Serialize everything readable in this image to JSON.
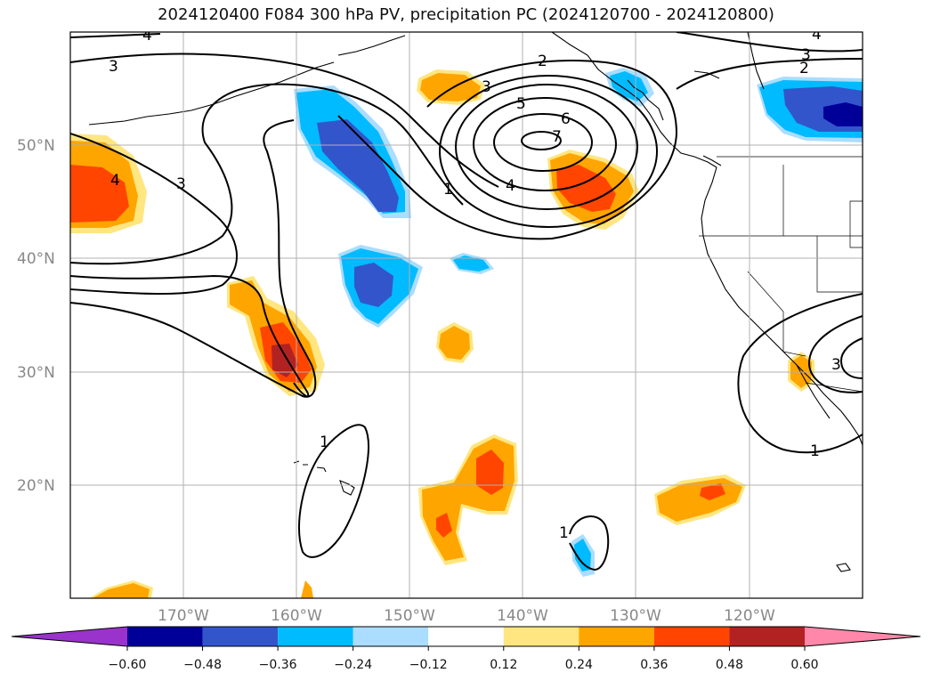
{
  "title": "2024120400 F084 300 hPa PV, precipitation PC (2024120700 - 2024120800)",
  "map": {
    "lon_min": -180,
    "lon_max": -110,
    "lat_min": 10,
    "lat_max": 60,
    "lat_ticks": [
      {
        "value": 20,
        "label": "20°N"
      },
      {
        "value": 30,
        "label": "30°N"
      },
      {
        "value": 40,
        "label": "40°N"
      },
      {
        "value": 50,
        "label": "50°N"
      }
    ],
    "lon_ticks": [
      {
        "value": -170,
        "label": "170°W"
      },
      {
        "value": -160,
        "label": "160°W"
      },
      {
        "value": -150,
        "label": "150°W"
      },
      {
        "value": -140,
        "label": "140°W"
      },
      {
        "value": -130,
        "label": "130°W"
      },
      {
        "value": -120,
        "label": "120°W"
      }
    ],
    "pv_contour_labels": [
      "1",
      "2",
      "3",
      "4",
      "5",
      "6",
      "7"
    ]
  },
  "colorbar": {
    "boundaries": [
      "−0.60",
      "−0.48",
      "−0.36",
      "−0.24",
      "−0.12",
      "0.12",
      "0.24",
      "0.36",
      "0.48",
      "0.60"
    ],
    "colors": [
      "#9933cc",
      "#000099",
      "#3355cc",
      "#00bbff",
      "#aaddff",
      "#ffffff",
      "#ffe680",
      "#ffa500",
      "#ff4500",
      "#b22222",
      "#ff88aa"
    ]
  }
}
